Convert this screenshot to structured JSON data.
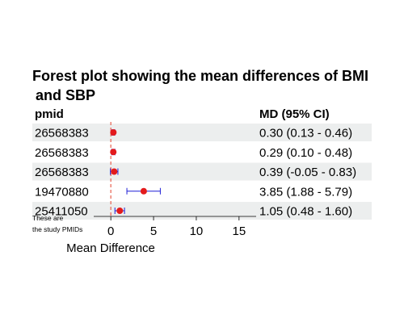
{
  "chart_data": {
    "type": "forest",
    "title_line1": "Forest plot showing the mean differences of BMI",
    "title_line2": "and SBP",
    "columns": {
      "left": "pmid",
      "right": "MD (95% CI)"
    },
    "rows": [
      {
        "pmid": "26568383",
        "md": 0.3,
        "lo": 0.13,
        "hi": 0.46,
        "ci_text": "0.30 (0.13 - 0.46)"
      },
      {
        "pmid": "26568383",
        "md": 0.29,
        "lo": 0.1,
        "hi": 0.48,
        "ci_text": "0.29 (0.10 - 0.48)"
      },
      {
        "pmid": "26568383",
        "md": 0.39,
        "lo": -0.05,
        "hi": 0.83,
        "ci_text": "0.39 (-0.05 - 0.83)"
      },
      {
        "pmid": "19470880",
        "md": 3.85,
        "lo": 1.88,
        "hi": 5.79,
        "ci_text": "3.85 (1.88 - 5.79)"
      },
      {
        "pmid": "25411050",
        "md": 1.05,
        "lo": 0.48,
        "hi": 1.6,
        "ci_text": "1.05 (0.48 - 1.60)"
      }
    ],
    "xlabel": "Mean Difference",
    "xticks": [
      0,
      5,
      10,
      15
    ],
    "xlim": [
      -2,
      17
    ],
    "reference_line": 0,
    "note_line1": "These are",
    "note_line2": "the study PMIDs",
    "colors": {
      "point": "#e31a1c",
      "ci": "#1f1fd6",
      "reference": "#e8614f",
      "stripe": "#eceeee"
    }
  }
}
